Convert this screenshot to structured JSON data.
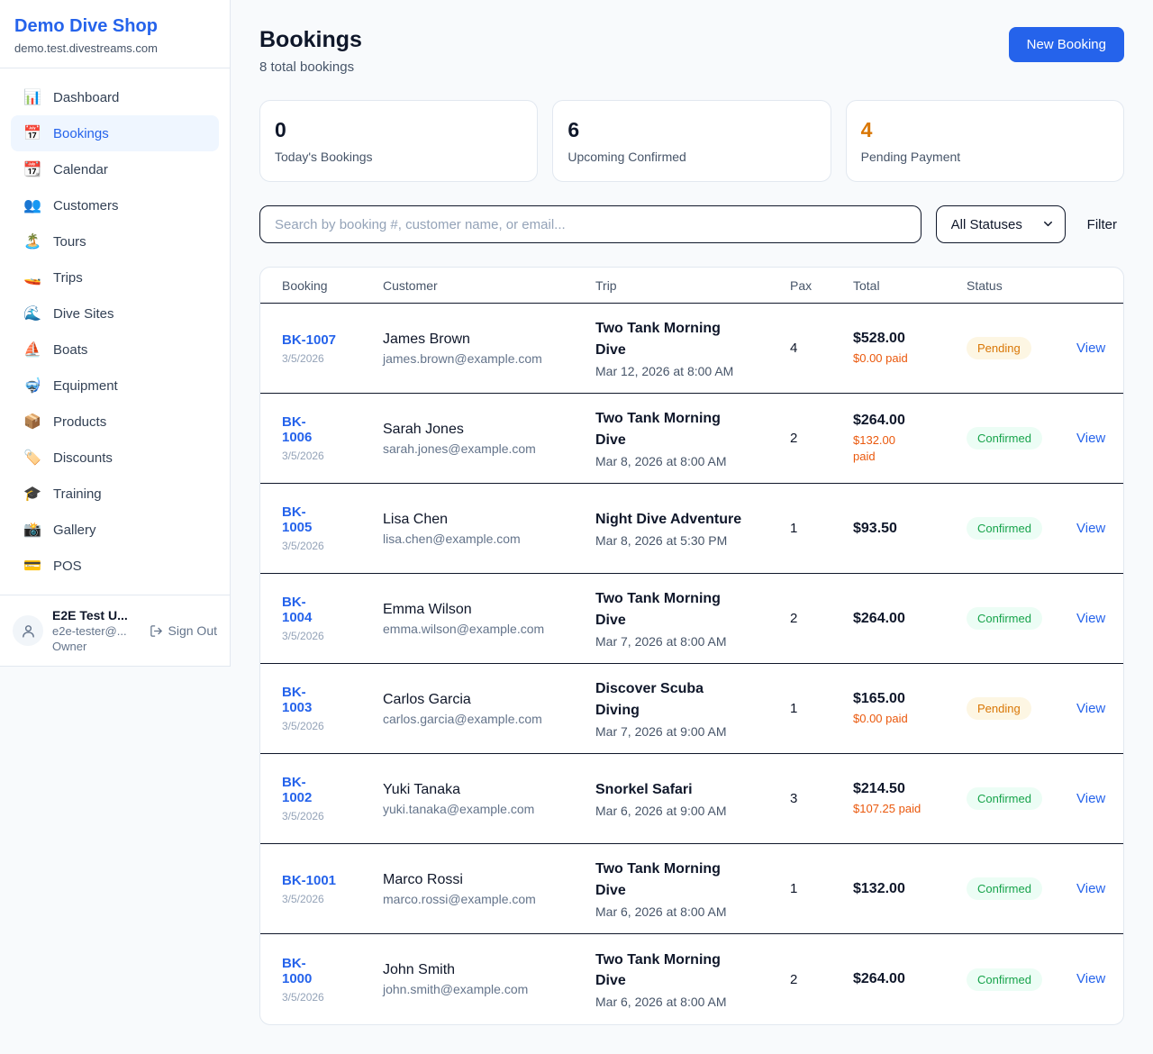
{
  "sidebar": {
    "brand": "Demo Dive Shop",
    "domain": "demo.test.divestreams.com",
    "nav": [
      {
        "name": "dashboard",
        "icon": "📊",
        "label": "Dashboard",
        "active": false
      },
      {
        "name": "bookings",
        "icon": "📅",
        "label": "Bookings",
        "active": true
      },
      {
        "name": "calendar",
        "icon": "📆",
        "label": "Calendar",
        "active": false
      },
      {
        "name": "customers",
        "icon": "👥",
        "label": "Customers",
        "active": false
      },
      {
        "name": "tours",
        "icon": "🏝️",
        "label": "Tours",
        "active": false
      },
      {
        "name": "trips",
        "icon": "🚤",
        "label": "Trips",
        "active": false
      },
      {
        "name": "dive-sites",
        "icon": "🌊",
        "label": "Dive Sites",
        "active": false
      },
      {
        "name": "boats",
        "icon": "⛵",
        "label": "Boats",
        "active": false
      },
      {
        "name": "equipment",
        "icon": "🤿",
        "label": "Equipment",
        "active": false
      },
      {
        "name": "products",
        "icon": "📦",
        "label": "Products",
        "active": false
      },
      {
        "name": "discounts",
        "icon": "🏷️",
        "label": "Discounts",
        "active": false
      },
      {
        "name": "training",
        "icon": "🎓",
        "label": "Training",
        "active": false
      },
      {
        "name": "gallery",
        "icon": "📸",
        "label": "Gallery",
        "active": false
      },
      {
        "name": "pos",
        "icon": "💳",
        "label": "POS",
        "active": false
      }
    ],
    "user": {
      "name": "E2E Test U...",
      "email": "e2e-tester@...",
      "role": "Owner",
      "sign_out_label": "Sign Out"
    }
  },
  "header": {
    "title": "Bookings",
    "subtitle": "8 total bookings",
    "new_booking_label": "New Booking"
  },
  "stats": [
    {
      "value": "0",
      "label": "Today's Bookings",
      "accent": "dark"
    },
    {
      "value": "6",
      "label": "Upcoming Confirmed",
      "accent": "dark"
    },
    {
      "value": "4",
      "label": "Pending Payment",
      "accent": "orange"
    }
  ],
  "controls": {
    "search_placeholder": "Search by booking #, customer name, or email...",
    "status_filter_value": "All Statuses",
    "filter_label": "Filter"
  },
  "table": {
    "columns": [
      "Booking",
      "Customer",
      "Trip",
      "Pax",
      "Total",
      "Status"
    ],
    "view_label": "View",
    "rows": [
      {
        "id": "BK-1007",
        "date": "3/5/2026",
        "customer": "James Brown",
        "email": "james.brown@example.com",
        "trip": "Two Tank Morning\nDive",
        "trip_datetime": "Mar 12, 2026 at 8:00 AM",
        "pax": "4",
        "total": "$528.00",
        "paid": "$0.00 paid",
        "status": "Pending"
      },
      {
        "id": "BK-\n1006",
        "date": "3/5/2026",
        "customer": "Sarah Jones",
        "email": "sarah.jones@example.com",
        "trip": "Two Tank Morning\nDive",
        "trip_datetime": "Mar 8, 2026 at 8:00 AM",
        "pax": "2",
        "total": "$264.00",
        "paid": "$132.00\npaid",
        "status": "Confirmed"
      },
      {
        "id": "BK-\n1005",
        "date": "3/5/2026",
        "customer": "Lisa Chen",
        "email": "lisa.chen@example.com",
        "trip": "Night Dive Adventure",
        "trip_datetime": "Mar 8, 2026 at 5:30 PM",
        "pax": "1",
        "total": "$93.50",
        "paid": "",
        "status": "Confirmed"
      },
      {
        "id": "BK-\n1004",
        "date": "3/5/2026",
        "customer": "Emma Wilson",
        "email": "emma.wilson@example.com",
        "trip": "Two Tank Morning\nDive",
        "trip_datetime": "Mar 7, 2026 at 8:00 AM",
        "pax": "2",
        "total": "$264.00",
        "paid": "",
        "status": "Confirmed"
      },
      {
        "id": "BK-\n1003",
        "date": "3/5/2026",
        "customer": "Carlos Garcia",
        "email": "carlos.garcia@example.com",
        "trip": "Discover Scuba\nDiving",
        "trip_datetime": "Mar 7, 2026 at 9:00 AM",
        "pax": "1",
        "total": "$165.00",
        "paid": "$0.00 paid",
        "status": "Pending"
      },
      {
        "id": "BK-\n1002",
        "date": "3/5/2026",
        "customer": "Yuki Tanaka",
        "email": "yuki.tanaka@example.com",
        "trip": "Snorkel Safari",
        "trip_datetime": "Mar 6, 2026 at 9:00 AM",
        "pax": "3",
        "total": "$214.50",
        "paid": "$107.25 paid",
        "status": "Confirmed"
      },
      {
        "id": "BK-1001",
        "date": "3/5/2026",
        "customer": "Marco Rossi",
        "email": "marco.rossi@example.com",
        "trip": "Two Tank Morning\nDive",
        "trip_datetime": "Mar 6, 2026 at 8:00 AM",
        "pax": "1",
        "total": "$132.00",
        "paid": "",
        "status": "Confirmed"
      },
      {
        "id": "BK-\n1000",
        "date": "3/5/2026",
        "customer": "John Smith",
        "email": "john.smith@example.com",
        "trip": "Two Tank Morning\nDive",
        "trip_datetime": "Mar 6, 2026 at 8:00 AM",
        "pax": "2",
        "total": "$264.00",
        "paid": "",
        "status": "Confirmed"
      }
    ]
  },
  "colors": {
    "accent_blue": "#2563eb",
    "pending_text": "#d97706",
    "pending_bg": "#fdf6e3",
    "confirmed_text": "#16a34a",
    "confirmed_bg": "#ecfdf5",
    "paid_orange": "#ea580c"
  }
}
